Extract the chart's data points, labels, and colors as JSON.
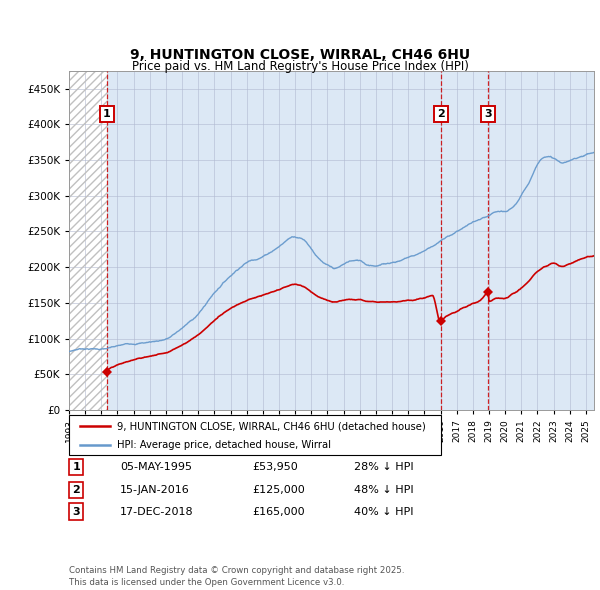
{
  "title_line1": "9, HUNTINGTON CLOSE, WIRRAL, CH46 6HU",
  "title_line2": "Price paid vs. HM Land Registry's House Price Index (HPI)",
  "background_color": "#dce8f5",
  "hpi_color": "#6699cc",
  "sale_color": "#cc0000",
  "sales": [
    {
      "date_num": 1995.35,
      "price": 53950,
      "label": "1"
    },
    {
      "date_num": 2016.04,
      "price": 125000,
      "label": "2"
    },
    {
      "date_num": 2018.96,
      "price": 165000,
      "label": "3"
    }
  ],
  "sale_vlines": [
    1995.35,
    2016.04,
    2018.96
  ],
  "legend_entries": [
    "9, HUNTINGTON CLOSE, WIRRAL, CH46 6HU (detached house)",
    "HPI: Average price, detached house, Wirral"
  ],
  "table_rows": [
    {
      "num": "1",
      "date": "05-MAY-1995",
      "price": "£53,950",
      "pct": "28% ↓ HPI"
    },
    {
      "num": "2",
      "date": "15-JAN-2016",
      "price": "£125,000",
      "pct": "48% ↓ HPI"
    },
    {
      "num": "3",
      "date": "17-DEC-2018",
      "price": "£165,000",
      "pct": "40% ↓ HPI"
    }
  ],
  "footnote": "Contains HM Land Registry data © Crown copyright and database right 2025.\nThis data is licensed under the Open Government Licence v3.0.",
  "xlim": [
    1993,
    2025.5
  ],
  "ylim": [
    0,
    475000
  ],
  "yticks": [
    0,
    50000,
    100000,
    150000,
    200000,
    250000,
    300000,
    350000,
    400000,
    450000
  ],
  "ytick_labels": [
    "£0",
    "£50K",
    "£100K",
    "£150K",
    "£200K",
    "£250K",
    "£300K",
    "£350K",
    "£400K",
    "£450K"
  ],
  "xtick_years": [
    1993,
    1994,
    1995,
    1996,
    1997,
    1998,
    1999,
    2000,
    2001,
    2002,
    2003,
    2004,
    2005,
    2006,
    2007,
    2008,
    2009,
    2010,
    2011,
    2012,
    2013,
    2014,
    2015,
    2016,
    2017,
    2018,
    2019,
    2020,
    2021,
    2022,
    2023,
    2024,
    2025
  ],
  "ann_y": 415000,
  "hpi_knots": [
    [
      1993.0,
      75000
    ],
    [
      1994.0,
      80000
    ],
    [
      1995.0,
      80000
    ],
    [
      1996.0,
      83000
    ],
    [
      1997.0,
      87000
    ],
    [
      1998.0,
      90000
    ],
    [
      1999.0,
      95000
    ],
    [
      2000.0,
      110000
    ],
    [
      2001.0,
      130000
    ],
    [
      2002.0,
      160000
    ],
    [
      2003.0,
      185000
    ],
    [
      2004.0,
      205000
    ],
    [
      2005.0,
      215000
    ],
    [
      2006.0,
      230000
    ],
    [
      2007.0,
      245000
    ],
    [
      2007.5,
      242000
    ],
    [
      2008.0,
      230000
    ],
    [
      2008.5,
      215000
    ],
    [
      2009.0,
      205000
    ],
    [
      2009.5,
      200000
    ],
    [
      2010.0,
      205000
    ],
    [
      2010.5,
      210000
    ],
    [
      2011.0,
      210000
    ],
    [
      2011.5,
      205000
    ],
    [
      2012.0,
      205000
    ],
    [
      2012.5,
      207000
    ],
    [
      2013.0,
      210000
    ],
    [
      2013.5,
      213000
    ],
    [
      2014.0,
      218000
    ],
    [
      2014.5,
      222000
    ],
    [
      2015.0,
      228000
    ],
    [
      2015.5,
      235000
    ],
    [
      2016.0,
      242000
    ],
    [
      2016.5,
      248000
    ],
    [
      2017.0,
      255000
    ],
    [
      2017.5,
      262000
    ],
    [
      2018.0,
      268000
    ],
    [
      2018.5,
      272000
    ],
    [
      2019.0,
      275000
    ],
    [
      2019.5,
      280000
    ],
    [
      2020.0,
      278000
    ],
    [
      2020.5,
      285000
    ],
    [
      2021.0,
      300000
    ],
    [
      2021.5,
      320000
    ],
    [
      2022.0,
      345000
    ],
    [
      2022.5,
      358000
    ],
    [
      2023.0,
      355000
    ],
    [
      2023.5,
      348000
    ],
    [
      2024.0,
      350000
    ],
    [
      2024.5,
      355000
    ],
    [
      2025.0,
      360000
    ],
    [
      2025.5,
      363000
    ]
  ],
  "red_knots": [
    [
      1995.35,
      53950
    ],
    [
      1996.0,
      60000
    ],
    [
      1997.0,
      67000
    ],
    [
      1998.0,
      72000
    ],
    [
      1999.0,
      78000
    ],
    [
      2000.0,
      90000
    ],
    [
      2001.0,
      105000
    ],
    [
      2002.0,
      125000
    ],
    [
      2003.0,
      143000
    ],
    [
      2004.0,
      155000
    ],
    [
      2005.0,
      162000
    ],
    [
      2006.0,
      168000
    ],
    [
      2007.0,
      175000
    ],
    [
      2007.5,
      172000
    ],
    [
      2008.0,
      165000
    ],
    [
      2008.5,
      158000
    ],
    [
      2009.0,
      153000
    ],
    [
      2009.5,
      150000
    ],
    [
      2010.0,
      153000
    ],
    [
      2010.5,
      155000
    ],
    [
      2011.0,
      155000
    ],
    [
      2011.5,
      152000
    ],
    [
      2012.0,
      152000
    ],
    [
      2012.5,
      153000
    ],
    [
      2013.0,
      154000
    ],
    [
      2013.5,
      155000
    ],
    [
      2014.0,
      157000
    ],
    [
      2014.5,
      158000
    ],
    [
      2015.0,
      160000
    ],
    [
      2015.5,
      163000
    ],
    [
      2016.0,
      125000
    ],
    [
      2016.1,
      128000
    ],
    [
      2016.5,
      135000
    ],
    [
      2017.0,
      140000
    ],
    [
      2017.5,
      145000
    ],
    [
      2018.0,
      150000
    ],
    [
      2018.5,
      155000
    ],
    [
      2018.96,
      165000
    ],
    [
      2019.0,
      153000
    ],
    [
      2019.5,
      158000
    ],
    [
      2020.0,
      157000
    ],
    [
      2020.5,
      163000
    ],
    [
      2021.0,
      170000
    ],
    [
      2021.5,
      180000
    ],
    [
      2022.0,
      192000
    ],
    [
      2022.5,
      200000
    ],
    [
      2023.0,
      205000
    ],
    [
      2023.5,
      200000
    ],
    [
      2024.0,
      205000
    ],
    [
      2024.5,
      210000
    ],
    [
      2025.0,
      215000
    ],
    [
      2025.5,
      218000
    ]
  ]
}
